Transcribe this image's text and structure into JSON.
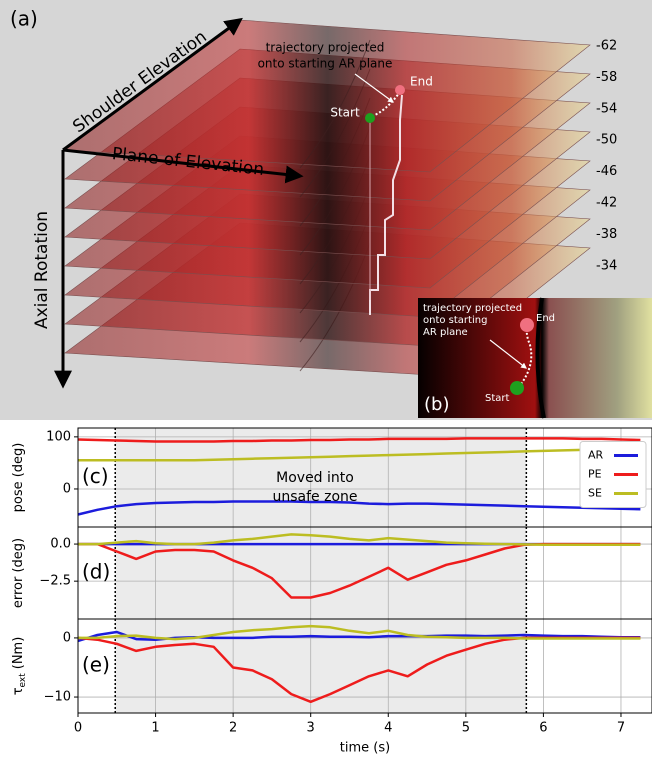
{
  "panel_a": {
    "label": "(a)",
    "shoulder": "Shoulder Elevation",
    "plane": "Plane of Elevation",
    "axial": "Axial Rotation",
    "levels": [
      -62,
      -58,
      -54,
      -50,
      -46,
      -42,
      -38,
      -34
    ],
    "note": [
      "trajectory projected",
      "onto starting AR plane"
    ],
    "start": "Start",
    "end": "End"
  },
  "panel_b": {
    "label": "(b)",
    "note": [
      "trajectory projected",
      "onto starting",
      "AR plane"
    ],
    "start": "Start",
    "end": "End"
  },
  "chart_data": [
    {
      "type": "line",
      "panel": "(c)",
      "ylabel": "pose (deg)",
      "x": [
        0,
        0.25,
        0.5,
        0.75,
        1,
        1.25,
        1.5,
        1.75,
        2,
        2.25,
        2.5,
        2.75,
        3,
        3.25,
        3.5,
        3.75,
        4,
        4.25,
        4.5,
        4.75,
        5,
        5.25,
        5.5,
        5.75,
        6,
        6.25,
        6.5,
        6.75,
        7,
        7.25
      ],
      "xlim": [
        0,
        7.4
      ],
      "xticks": [
        0,
        1,
        2,
        3,
        4,
        5,
        6,
        7
      ],
      "ylim": [
        -73,
        117
      ],
      "yticks": [
        0,
        100
      ],
      "grid": true,
      "span": [
        0.48,
        5.78
      ],
      "annotation": [
        "Moved into",
        "unsafe zone"
      ],
      "legend": "center right",
      "series": [
        {
          "name": "AR",
          "color": "#1c1cdc",
          "values": [
            -49,
            -40,
            -33,
            -29,
            -27,
            -26,
            -25,
            -25,
            -24,
            -24,
            -24,
            -24,
            -25,
            -25,
            -26,
            -28,
            -29,
            -28,
            -28,
            -29,
            -30,
            -31,
            -32,
            -33,
            -34,
            -35,
            -36,
            -37,
            -38,
            -39
          ]
        },
        {
          "name": "PE",
          "color": "#ee1c1c",
          "values": [
            95,
            94,
            93,
            92,
            91,
            91,
            91,
            91,
            92,
            92,
            93,
            93,
            94,
            94,
            95,
            95,
            96,
            96,
            96,
            96,
            97,
            97,
            97,
            97,
            97,
            97,
            96,
            96,
            95,
            94
          ]
        },
        {
          "name": "SE",
          "color": "#bcbd22",
          "values": [
            55,
            55,
            55,
            55,
            55,
            55,
            55,
            56,
            57,
            58,
            59,
            60,
            61,
            62,
            63,
            64,
            65,
            66,
            67,
            68,
            69,
            70,
            71,
            72,
            73,
            74,
            75,
            76,
            77,
            78
          ]
        }
      ]
    },
    {
      "type": "line",
      "panel": "(d)",
      "ylabel": "error (deg)",
      "x": [
        0,
        0.25,
        0.5,
        0.75,
        1,
        1.25,
        1.5,
        1.75,
        2,
        2.25,
        2.5,
        2.75,
        3,
        3.25,
        3.5,
        3.75,
        4,
        4.25,
        4.5,
        4.75,
        5,
        5.25,
        5.5,
        5.75,
        6,
        6.25,
        6.5,
        6.75,
        7,
        7.25
      ],
      "xlim": [
        0,
        7.4
      ],
      "xticks": [
        0,
        1,
        2,
        3,
        4,
        5,
        6,
        7
      ],
      "ylim": [
        -5.05,
        1.15
      ],
      "yticks": [
        {
          "value": 0,
          "label": "0.0"
        },
        {
          "value": -2.5,
          "label": "−2.5"
        }
      ],
      "grid": true,
      "span": [
        0.48,
        5.78
      ],
      "series": [
        {
          "name": "AR",
          "color": "#1c1cdc",
          "values": [
            0,
            0,
            0,
            0,
            0,
            0,
            0,
            0,
            0,
            0,
            0,
            0,
            0,
            0,
            0,
            0,
            0,
            0,
            0,
            0,
            0,
            0,
            0,
            0,
            0,
            0,
            0,
            0,
            0,
            0
          ]
        },
        {
          "name": "PE",
          "color": "#ee1c1c",
          "values": [
            0,
            0,
            -0.5,
            -1,
            -0.5,
            -0.4,
            -0.4,
            -0.5,
            -1.1,
            -1.6,
            -2.3,
            -3.6,
            -3.6,
            -3.3,
            -2.8,
            -2.2,
            -1.6,
            -2.4,
            -1.9,
            -1.4,
            -1.1,
            -0.7,
            -0.3,
            -0.05,
            0,
            0,
            0,
            0,
            0,
            0
          ]
        },
        {
          "name": "SE",
          "color": "#bcbd22",
          "values": [
            0,
            0,
            0.1,
            0.2,
            0.05,
            0,
            0,
            0.1,
            0.25,
            0.35,
            0.5,
            0.65,
            0.6,
            0.5,
            0.35,
            0.25,
            0.4,
            0.3,
            0.2,
            0.1,
            0.05,
            0.02,
            0,
            -0.02,
            -0.05,
            -0.05,
            -0.05,
            -0.05,
            -0.05,
            -0.05
          ]
        }
      ]
    },
    {
      "type": "line",
      "panel": "(e)",
      "ylabel": "τ",
      "ylabel_sub": "ext",
      "ylabel_unit": "(Nm)",
      "xlabel": "time (s)",
      "x": [
        0,
        0.25,
        0.5,
        0.75,
        1,
        1.25,
        1.5,
        1.75,
        2,
        2.25,
        2.5,
        2.75,
        3,
        3.25,
        3.5,
        3.75,
        4,
        4.25,
        4.5,
        4.75,
        5,
        5.25,
        5.5,
        5.75,
        6,
        6.25,
        6.5,
        6.75,
        7,
        7.25
      ],
      "xlim": [
        0,
        7.4
      ],
      "xticks": [
        0,
        1,
        2,
        3,
        4,
        5,
        6,
        7
      ],
      "ylim": [
        -12.7,
        3.2
      ],
      "yticks": [
        0,
        {
          "value": -10,
          "label": "−10"
        }
      ],
      "grid": true,
      "span": [
        0.48,
        5.78
      ],
      "series": [
        {
          "name": "AR",
          "color": "#1c1cdc",
          "values": [
            -0.5,
            0.5,
            1,
            -0.2,
            -0.3,
            0,
            0.1,
            0,
            0,
            0,
            0.2,
            0.2,
            0.3,
            0.2,
            0.2,
            0.1,
            0.3,
            0.3,
            0.3,
            0.4,
            0.4,
            0.3,
            0.4,
            0.5,
            0.4,
            0.3,
            0.3,
            0.2,
            0.1,
            0.1
          ]
        },
        {
          "name": "PE",
          "color": "#ee1c1c",
          "values": [
            0,
            -0.3,
            -1,
            -2.2,
            -1.5,
            -1.2,
            -1,
            -1.5,
            -5,
            -5.5,
            -7,
            -9.5,
            -10.8,
            -9.5,
            -8,
            -6.5,
            -5.5,
            -6.5,
            -4.5,
            -3,
            -2,
            -1,
            -0.3,
            0,
            0,
            0,
            0,
            0,
            0,
            0
          ]
        },
        {
          "name": "SE",
          "color": "#bcbd22",
          "values": [
            0,
            0,
            0.3,
            0.4,
            0,
            -0.2,
            0,
            0.5,
            1,
            1.3,
            1.5,
            1.8,
            2,
            1.8,
            1.2,
            0.8,
            1.2,
            0.5,
            0.2,
            0.1,
            0,
            0,
            0,
            -0.1,
            -0.1,
            -0.1,
            -0.1,
            -0.1,
            -0.1,
            -0.1
          ]
        }
      ]
    }
  ]
}
